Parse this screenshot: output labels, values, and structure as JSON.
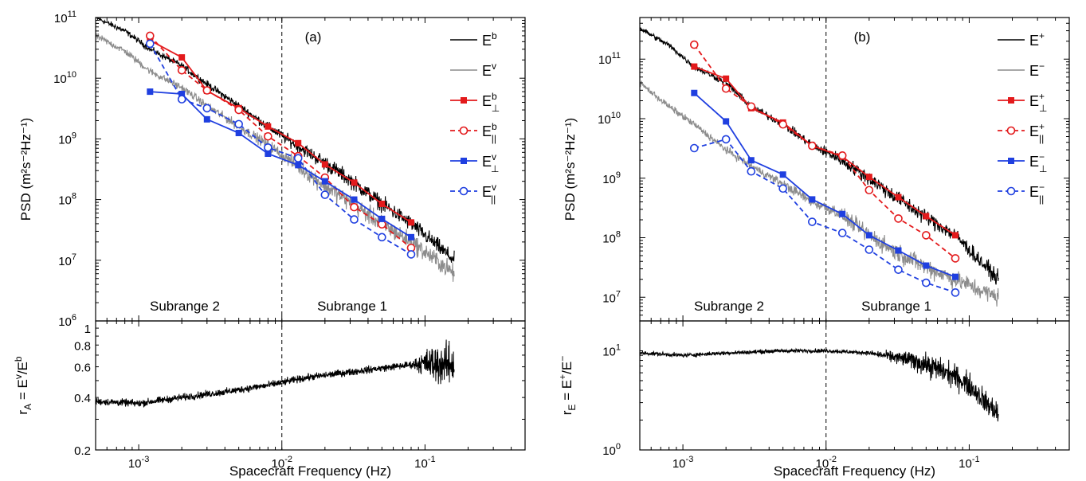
{
  "chart_data": [
    {
      "type": "line",
      "panel_label": "(a)",
      "xlabel": "Spacecraft Frequency (Hz)",
      "ylabel": "PSD (m²s⁻²Hz⁻¹)",
      "x_log": true,
      "y_log": true,
      "xlim": [
        0.0005,
        0.5
      ],
      "ylim": [
        1000000.0,
        100000000000.0
      ],
      "x_ticks": [
        {
          "v": 0.001,
          "b": "10",
          "e": "-3"
        },
        {
          "v": 0.01,
          "b": "10",
          "e": "-2"
        },
        {
          "v": 0.1,
          "b": "10",
          "e": "-1"
        }
      ],
      "y_ticks": [
        {
          "v": 1000000.0,
          "b": "10",
          "e": "6"
        },
        {
          "v": 10000000.0,
          "b": "10",
          "e": "7"
        },
        {
          "v": 100000000.0,
          "b": "10",
          "e": "8"
        },
        {
          "v": 1000000000.0,
          "b": "10",
          "e": "9"
        },
        {
          "v": 10000000000.0,
          "b": "10",
          "e": "10"
        },
        {
          "v": 100000000000.0,
          "b": "10",
          "e": "11"
        }
      ],
      "vline_x": 0.01,
      "subrange_labels": [
        {
          "text": "Subrange 2",
          "x": 0.0021
        },
        {
          "text": "Subrange 1",
          "x": 0.031
        }
      ],
      "legend_position": "top-right",
      "spectra": [
        {
          "base": "E",
          "sup": "b",
          "sub": "",
          "color": "#000000",
          "kind": "spectrum",
          "pts": [
            [
              0.0005,
              100000000000.0
            ],
            [
              0.0008,
              60000000000.0
            ],
            [
              0.0012,
              30000000000.0
            ],
            [
              0.002,
              16000000000.0
            ],
            [
              0.003,
              8000000000.0
            ],
            [
              0.005,
              3500000000.0
            ],
            [
              0.008,
              1600000000.0
            ],
            [
              0.012,
              850000000.0
            ],
            [
              0.02,
              400000000.0
            ],
            [
              0.03,
              210000000.0
            ],
            [
              0.05,
              85000000.0
            ],
            [
              0.08,
              40000000.0
            ],
            [
              0.12,
              18000000.0
            ],
            [
              0.16,
              10000000.0
            ]
          ],
          "noise": 0.11
        },
        {
          "base": "E",
          "sup": "v",
          "sub": "",
          "color": "#8c8c8c",
          "kind": "spectrum",
          "pts": [
            [
              0.0005,
              50000000000.0
            ],
            [
              0.0008,
              28000000000.0
            ],
            [
              0.0012,
              13000000000.0
            ],
            [
              0.002,
              7000000000.0
            ],
            [
              0.003,
              3500000000.0
            ],
            [
              0.005,
              1600000000.0
            ],
            [
              0.008,
              800000000.0
            ],
            [
              0.012,
              400000000.0
            ],
            [
              0.02,
              170000000.0
            ],
            [
              0.03,
              90000000.0
            ],
            [
              0.05,
              40000000.0
            ],
            [
              0.08,
              20000000.0
            ],
            [
              0.12,
              10000000.0
            ],
            [
              0.16,
              6000000.0
            ]
          ],
          "noise": 0.13
        },
        {
          "base": "E",
          "sup": "b",
          "sub": "⊥",
          "color": "#e31a1c",
          "kind": "solid",
          "pts": [
            [
              0.0012,
              42000000000.0
            ],
            [
              0.002,
              22000000000.0
            ],
            [
              0.003,
              6200000000.0
            ],
            [
              0.005,
              3200000000.0
            ],
            [
              0.008,
              1600000000.0
            ],
            [
              0.013,
              850000000.0
            ],
            [
              0.02,
              380000000.0
            ],
            [
              0.032,
              190000000.0
            ],
            [
              0.05,
              85000000.0
            ],
            [
              0.08,
              42000000.0
            ]
          ]
        },
        {
          "base": "E",
          "sup": "b",
          "sub": "||",
          "color": "#e31a1c",
          "kind": "dashed",
          "pts": [
            [
              0.0012,
              50000000000.0
            ],
            [
              0.002,
              13500000000.0
            ],
            [
              0.003,
              6300000000.0
            ],
            [
              0.005,
              3000000000.0
            ],
            [
              0.008,
              1100000000.0
            ],
            [
              0.013,
              520000000.0
            ],
            [
              0.02,
              230000000.0
            ],
            [
              0.032,
              75000000.0
            ],
            [
              0.05,
              39000000.0
            ],
            [
              0.08,
              16000000.0
            ]
          ]
        },
        {
          "base": "E",
          "sup": "v",
          "sub": "⊥",
          "color": "#1f3fe0",
          "kind": "solid",
          "pts": [
            [
              0.0012,
              6000000000.0
            ],
            [
              0.002,
              5500000000.0
            ],
            [
              0.003,
              2100000000.0
            ],
            [
              0.005,
              1250000000.0
            ],
            [
              0.008,
              570000000.0
            ],
            [
              0.013,
              370000000.0
            ],
            [
              0.02,
              200000000.0
            ],
            [
              0.032,
              100000000.0
            ],
            [
              0.05,
              48000000.0
            ],
            [
              0.08,
              24000000.0
            ]
          ]
        },
        {
          "base": "E",
          "sup": "v",
          "sub": "||",
          "color": "#1f3fe0",
          "kind": "dashed",
          "pts": [
            [
              0.0012,
              37000000000.0
            ],
            [
              0.002,
              4500000000.0
            ],
            [
              0.003,
              3200000000.0
            ],
            [
              0.005,
              1750000000.0
            ],
            [
              0.008,
              720000000.0
            ],
            [
              0.013,
              480000000.0
            ],
            [
              0.02,
              120000000.0
            ],
            [
              0.032,
              47000000.0
            ],
            [
              0.05,
              24000000.0
            ],
            [
              0.08,
              12500000.0
            ]
          ]
        }
      ],
      "ratio": {
        "ylabel_base": "r",
        "ylabel_sub": "A",
        "ylabel_rest": " = E",
        "ylabel_sup1": "v",
        "ylabel_mid": "/E",
        "ylabel_sup2": "b",
        "ylim": [
          0.2,
          1.1
        ],
        "y_ticks": [
          {
            "v": 0.2,
            "t": "0.2"
          },
          {
            "v": 0.4,
            "t": "0.4"
          },
          {
            "v": 0.6,
            "t": "0.6"
          },
          {
            "v": 0.8,
            "t": "0.8"
          },
          {
            "v": 1.0,
            "t": "1"
          }
        ],
        "pts": [
          [
            0.0005,
            0.38
          ],
          [
            0.001,
            0.37
          ],
          [
            0.002,
            0.4
          ],
          [
            0.004,
            0.43
          ],
          [
            0.008,
            0.47
          ],
          [
            0.015,
            0.52
          ],
          [
            0.03,
            0.56
          ],
          [
            0.06,
            0.6
          ],
          [
            0.1,
            0.63
          ],
          [
            0.16,
            0.62
          ]
        ],
        "noise_start": 0.08,
        "noise_growth": 0.28
      }
    },
    {
      "type": "line",
      "panel_label": "(b)",
      "xlabel": "Spacecraft Frequency (Hz)",
      "ylabel": "PSD (m²s⁻²Hz⁻¹)",
      "x_log": true,
      "y_log": true,
      "xlim": [
        0.0005,
        0.5
      ],
      "ylim": [
        4000000.0,
        500000000000.0
      ],
      "x_ticks": [
        {
          "v": 0.001,
          "b": "10",
          "e": "-3"
        },
        {
          "v": 0.01,
          "b": "10",
          "e": "-2"
        },
        {
          "v": 0.1,
          "b": "10",
          "e": "-1"
        }
      ],
      "y_ticks": [
        {
          "v": 10000000.0,
          "b": "10",
          "e": "7"
        },
        {
          "v": 100000000.0,
          "b": "10",
          "e": "8"
        },
        {
          "v": 1000000000.0,
          "b": "10",
          "e": "9"
        },
        {
          "v": 10000000000.0,
          "b": "10",
          "e": "10"
        },
        {
          "v": 100000000000.0,
          "b": "10",
          "e": "11"
        }
      ],
      "vline_x": 0.01,
      "subrange_labels": [
        {
          "text": "Subrange 2",
          "x": 0.0021
        },
        {
          "text": "Subrange 1",
          "x": 0.031
        }
      ],
      "legend_position": "top-right",
      "spectra": [
        {
          "base": "E",
          "sup": "+",
          "sub": "",
          "color": "#000000",
          "kind": "spectrum",
          "pts": [
            [
              0.0005,
              330000000000.0
            ],
            [
              0.0008,
              170000000000.0
            ],
            [
              0.0012,
              75000000000.0
            ],
            [
              0.002,
              40000000000.0
            ],
            [
              0.003,
              16000000000.0
            ],
            [
              0.005,
              8000000000.0
            ],
            [
              0.008,
              3600000000.0
            ],
            [
              0.012,
              2200000000.0
            ],
            [
              0.02,
              1000000000.0
            ],
            [
              0.03,
              500000000.0
            ],
            [
              0.05,
              220000000.0
            ],
            [
              0.08,
              110000000.0
            ],
            [
              0.12,
              40000000.0
            ],
            [
              0.16,
              20000000.0
            ]
          ],
          "noise": 0.11
        },
        {
          "base": "E",
          "sup": "−",
          "sub": "",
          "color": "#8c8c8c",
          "kind": "spectrum",
          "pts": [
            [
              0.0005,
              40000000000.0
            ],
            [
              0.0008,
              16000000000.0
            ],
            [
              0.0012,
              8000000000.0
            ],
            [
              0.002,
              3000000000.0
            ],
            [
              0.003,
              1600000000.0
            ],
            [
              0.005,
              800000000.0
            ],
            [
              0.008,
              400000000.0
            ],
            [
              0.012,
              270000000.0
            ],
            [
              0.02,
              110000000.0
            ],
            [
              0.03,
              60000000.0
            ],
            [
              0.05,
              32000000.0
            ],
            [
              0.08,
              20000000.0
            ],
            [
              0.12,
              13000000.0
            ],
            [
              0.16,
              10000000.0
            ]
          ],
          "noise": 0.13
        },
        {
          "base": "E",
          "sup": "+",
          "sub": "⊥",
          "color": "#e31a1c",
          "kind": "solid",
          "pts": [
            [
              0.0012,
              75000000000.0
            ],
            [
              0.002,
              47000000000.0
            ],
            [
              0.003,
              15000000000.0
            ],
            [
              0.005,
              8600000000.0
            ],
            [
              0.008,
              3500000000.0
            ],
            [
              0.013,
              2300000000.0
            ],
            [
              0.02,
              1050000000.0
            ],
            [
              0.032,
              480000000.0
            ],
            [
              0.05,
              230000000.0
            ],
            [
              0.08,
              110000000.0
            ]
          ]
        },
        {
          "base": "E",
          "sup": "+",
          "sub": "||",
          "color": "#e31a1c",
          "kind": "dashed",
          "pts": [
            [
              0.0012,
              175000000000.0
            ],
            [
              0.002,
              32000000000.0
            ],
            [
              0.003,
              16000000000.0
            ],
            [
              0.005,
              8000000000.0
            ],
            [
              0.008,
              3500000000.0
            ],
            [
              0.013,
              2400000000.0
            ],
            [
              0.02,
              630000000.0
            ],
            [
              0.032,
              210000000.0
            ],
            [
              0.05,
              110000000.0
            ],
            [
              0.08,
              45000000.0
            ]
          ]
        },
        {
          "base": "E",
          "sup": "−",
          "sub": "⊥",
          "color": "#1f3fe0",
          "kind": "solid",
          "pts": [
            [
              0.0012,
              27000000000.0
            ],
            [
              0.002,
              9000000000.0
            ],
            [
              0.003,
              2000000000.0
            ],
            [
              0.005,
              1150000000.0
            ],
            [
              0.008,
              440000000.0
            ],
            [
              0.013,
              250000000.0
            ],
            [
              0.02,
              110000000.0
            ],
            [
              0.032,
              61000000.0
            ],
            [
              0.05,
              34000000.0
            ],
            [
              0.08,
              22000000.0
            ]
          ]
        },
        {
          "base": "E",
          "sup": "−",
          "sub": "||",
          "color": "#1f3fe0",
          "kind": "dashed",
          "pts": [
            [
              0.0012,
              3200000000.0
            ],
            [
              0.002,
              4500000000.0
            ],
            [
              0.003,
              1300000000.0
            ],
            [
              0.005,
              670000000.0
            ],
            [
              0.008,
              185000000.0
            ],
            [
              0.013,
              120000000.0
            ],
            [
              0.02,
              63000000.0
            ],
            [
              0.032,
              29000000.0
            ],
            [
              0.05,
              17500000.0
            ],
            [
              0.08,
              12000000.0
            ]
          ]
        }
      ],
      "ratio": {
        "ylabel_base": "r",
        "ylabel_sub": "E",
        "ylabel_rest": " = E",
        "ylabel_sup1": "+",
        "ylabel_mid": "/E",
        "ylabel_sup2": "−",
        "ylim": [
          1,
          20
        ],
        "y_ticks": [
          {
            "v": 1,
            "b": "10",
            "e": "0"
          },
          {
            "v": 10,
            "b": "10",
            "e": "1"
          }
        ],
        "pts": [
          [
            0.0005,
            9.5
          ],
          [
            0.001,
            9.0
          ],
          [
            0.002,
            9.5
          ],
          [
            0.005,
            10.0
          ],
          [
            0.01,
            10.0
          ],
          [
            0.02,
            9.5
          ],
          [
            0.04,
            8.0
          ],
          [
            0.07,
            6.0
          ],
          [
            0.1,
            4.5
          ],
          [
            0.13,
            3.0
          ],
          [
            0.16,
            2.3
          ]
        ],
        "noise_start": 0.02,
        "noise_growth": 0.35
      }
    }
  ]
}
